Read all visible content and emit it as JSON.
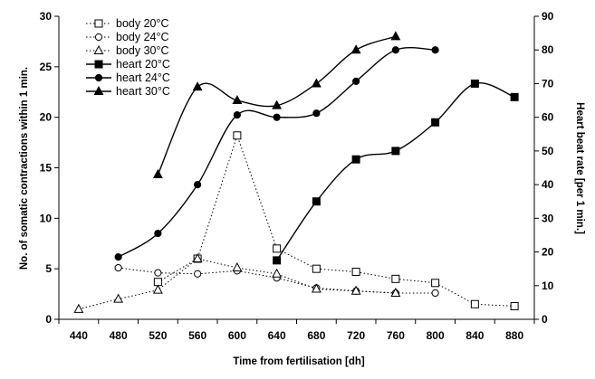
{
  "chart_data": {
    "type": "line",
    "title": "",
    "xlabel": "Time from fertilisation [dh]",
    "ylabel": "No. of somatic contractions within 1 min.",
    "y2label": "Heart beat rate [per 1 min.]",
    "xlim": [
      420,
      900
    ],
    "ylim": [
      0,
      30
    ],
    "y2lim": [
      0,
      90
    ],
    "x_ticks": [
      440,
      480,
      520,
      560,
      600,
      640,
      680,
      720,
      760,
      800,
      840,
      880
    ],
    "y_ticks": [
      0,
      5,
      10,
      15,
      20,
      25,
      30
    ],
    "y2_ticks": [
      0,
      10,
      20,
      30,
      40,
      50,
      60,
      70,
      80,
      90
    ],
    "grid": false,
    "legend_position": "top-left",
    "series": [
      {
        "name": "body 20°C",
        "axis": "left",
        "line": "dotted",
        "marker": "square-open",
        "smooth": false,
        "points": [
          [
            520,
            3.7
          ],
          [
            560,
            6.0
          ],
          [
            600,
            18.2
          ],
          [
            640,
            7.0
          ],
          [
            680,
            5.0
          ],
          [
            720,
            4.7
          ],
          [
            760,
            4.0
          ],
          [
            800,
            3.6
          ],
          [
            840,
            1.5
          ],
          [
            880,
            1.3
          ]
        ]
      },
      {
        "name": "body 24°C",
        "axis": "left",
        "line": "dotted",
        "marker": "circle-open",
        "smooth": false,
        "points": [
          [
            480,
            5.1
          ],
          [
            520,
            4.6
          ],
          [
            560,
            4.5
          ],
          [
            600,
            4.8
          ],
          [
            640,
            4.1
          ],
          [
            680,
            3.1
          ],
          [
            720,
            2.8
          ],
          [
            760,
            2.6
          ],
          [
            800,
            2.6
          ]
        ]
      },
      {
        "name": "body 30°C",
        "axis": "left",
        "line": "dotted",
        "marker": "triangle-open",
        "smooth": false,
        "points": [
          [
            440,
            1.0
          ],
          [
            480,
            2.0
          ],
          [
            520,
            2.9
          ],
          [
            560,
            6.0
          ],
          [
            600,
            5.1
          ],
          [
            640,
            4.5
          ],
          [
            680,
            3.0
          ],
          [
            720,
            2.8
          ],
          [
            760,
            2.6
          ]
        ]
      },
      {
        "name": "heart 20°C",
        "axis": "right",
        "line": "solid",
        "marker": "square-filled",
        "smooth": true,
        "points": [
          [
            640,
            17.5
          ],
          [
            680,
            35.0
          ],
          [
            720,
            47.5
          ],
          [
            760,
            50.0
          ],
          [
            800,
            58.5
          ],
          [
            840,
            70.0
          ],
          [
            880,
            66.0
          ]
        ]
      },
      {
        "name": "heart 24°C",
        "axis": "right",
        "line": "solid",
        "marker": "circle-filled",
        "smooth": true,
        "points": [
          [
            480,
            18.5
          ],
          [
            520,
            25.5
          ],
          [
            560,
            40.0
          ],
          [
            600,
            60.7
          ],
          [
            640,
            60.0
          ],
          [
            680,
            61.2
          ],
          [
            720,
            70.7
          ],
          [
            760,
            80.0
          ],
          [
            800,
            80.0
          ]
        ]
      },
      {
        "name": "heart 30°C",
        "axis": "right",
        "line": "solid",
        "marker": "triangle-filled",
        "smooth": true,
        "points": [
          [
            520,
            43.0
          ],
          [
            560,
            69.0
          ],
          [
            600,
            65.0
          ],
          [
            640,
            63.5
          ],
          [
            680,
            70.0
          ],
          [
            720,
            80.0
          ],
          [
            760,
            84.0
          ]
        ]
      }
    ]
  }
}
